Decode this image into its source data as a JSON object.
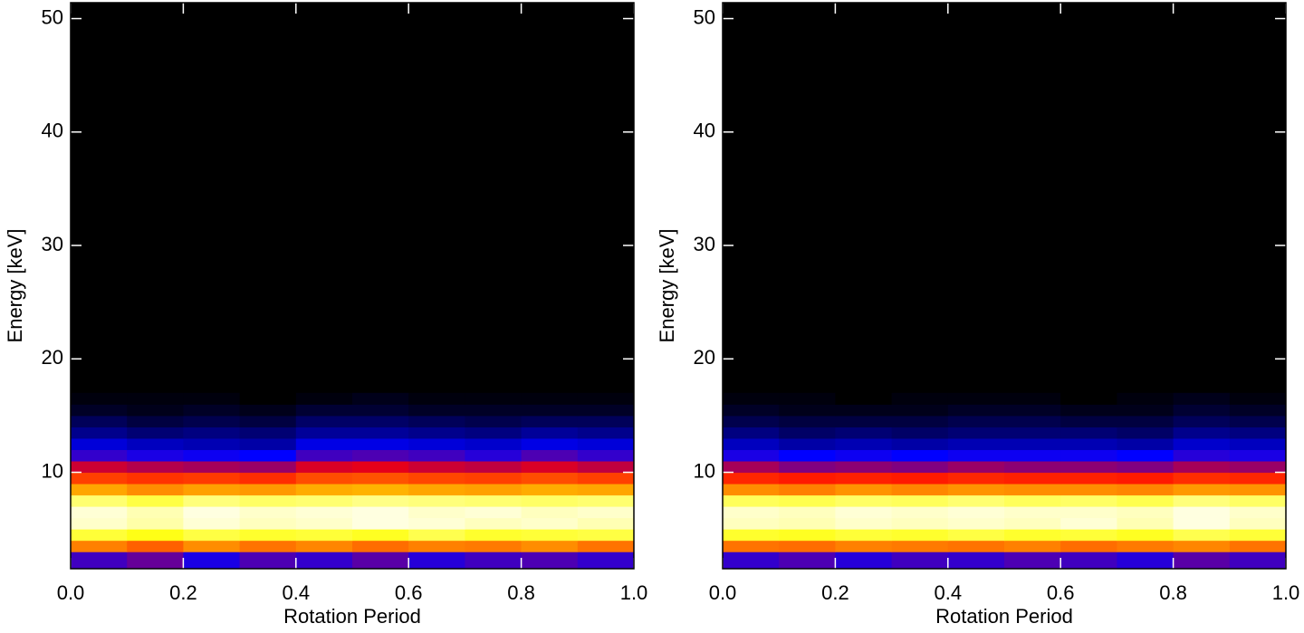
{
  "chart_data": [
    {
      "type": "heatmap",
      "xlabel": "Rotation Period",
      "ylabel": "Energy [keV]",
      "xlim": [
        0,
        1
      ],
      "ylim": [
        1.5,
        51.4
      ],
      "xticks": [
        {
          "value": 0,
          "label": "0.0"
        },
        {
          "value": 0.2,
          "label": "0.2"
        },
        {
          "value": 0.4,
          "label": "0.4"
        },
        {
          "value": 0.6,
          "label": "0.6"
        },
        {
          "value": 0.8,
          "label": "0.8"
        },
        {
          "value": 1,
          "label": "1.0"
        }
      ],
      "yticks": [
        10,
        20,
        30,
        40,
        50
      ],
      "colormap": [
        "#000000",
        "#0000ff",
        "#ff0000",
        "#ff8000",
        "#ffff00",
        "#ffffe0"
      ],
      "xbins": [
        0,
        0.1,
        0.2,
        0.3,
        0.4,
        0.5,
        0.6,
        0.7,
        0.8,
        0.9,
        1
      ],
      "ybins": [
        1.5,
        3,
        4,
        5,
        6,
        7,
        8,
        9,
        10,
        11,
        12,
        13,
        14,
        15,
        16,
        17
      ],
      "z": [
        [
          25,
          28,
          22,
          26,
          24,
          27,
          23,
          25,
          26,
          24
        ],
        [
          60,
          55,
          62,
          58,
          61,
          57,
          60,
          59,
          62,
          58
        ],
        [
          85,
          82,
          86,
          84,
          85,
          83,
          87,
          84,
          85,
          86
        ],
        [
          98,
          95,
          99,
          97,
          98,
          100,
          99,
          97,
          98,
          96
        ],
        [
          99,
          96,
          100,
          98,
          99,
          100,
          98,
          99,
          97,
          98
        ],
        [
          90,
          86,
          91,
          89,
          90,
          92,
          91,
          90,
          89,
          90
        ],
        [
          66,
          62,
          65,
          64,
          67,
          68,
          66,
          65,
          67,
          66
        ],
        [
          50,
          48,
          49,
          47,
          52,
          53,
          51,
          50,
          52,
          50
        ],
        [
          36,
          34,
          33,
          32,
          37,
          38,
          36,
          35,
          37,
          35
        ],
        [
          24,
          22,
          21,
          20,
          25,
          26,
          25,
          23,
          26,
          24
        ],
        [
          17,
          15,
          14,
          13,
          18,
          18,
          17,
          16,
          18,
          17
        ],
        [
          11,
          9,
          10,
          9,
          12,
          12,
          11,
          10,
          12,
          11
        ],
        [
          7,
          5,
          6,
          5,
          8,
          8,
          7,
          6,
          7,
          7
        ],
        [
          3,
          2,
          3,
          2,
          4,
          4,
          3,
          3,
          3,
          3
        ],
        [
          1,
          1,
          1,
          0,
          1,
          2,
          1,
          1,
          1,
          1
        ]
      ]
    },
    {
      "type": "heatmap",
      "xlabel": "Rotation Period",
      "ylabel": "Energy [keV]",
      "xlim": [
        0,
        1
      ],
      "ylim": [
        1.5,
        51.4
      ],
      "xticks": [
        {
          "value": 0,
          "label": "0.0"
        },
        {
          "value": 0.2,
          "label": "0.2"
        },
        {
          "value": 0.4,
          "label": "0.4"
        },
        {
          "value": 0.6,
          "label": "0.6"
        },
        {
          "value": 0.8,
          "label": "0.8"
        },
        {
          "value": 1,
          "label": "1.0"
        }
      ],
      "yticks": [
        10,
        20,
        30,
        40,
        50
      ],
      "colormap": [
        "#000000",
        "#0000ff",
        "#ff0000",
        "#ff8000",
        "#ffff00",
        "#ffffe0"
      ],
      "xbins": [
        0,
        0.1,
        0.2,
        0.3,
        0.4,
        0.5,
        0.6,
        0.7,
        0.8,
        0.9,
        1
      ],
      "ybins": [
        1.5,
        3,
        4,
        5,
        6,
        7,
        8,
        9,
        10,
        11,
        12,
        13,
        14,
        15,
        16,
        17
      ],
      "z": [
        [
          24,
          26,
          23,
          25,
          24,
          26,
          25,
          23,
          27,
          25
        ],
        [
          58,
          57,
          60,
          59,
          58,
          60,
          57,
          59,
          61,
          58
        ],
        [
          84,
          83,
          85,
          84,
          86,
          84,
          85,
          83,
          87,
          85
        ],
        [
          97,
          96,
          98,
          97,
          98,
          97,
          99,
          96,
          100,
          97
        ],
        [
          98,
          97,
          99,
          98,
          99,
          98,
          98,
          97,
          100,
          98
        ],
        [
          88,
          87,
          89,
          88,
          90,
          88,
          89,
          87,
          91,
          89
        ],
        [
          62,
          60,
          63,
          61,
          63,
          62,
          62,
          61,
          64,
          63
        ],
        [
          46,
          44,
          45,
          44,
          46,
          45,
          45,
          44,
          47,
          46
        ],
        [
          33,
          30,
          31,
          30,
          32,
          31,
          31,
          30,
          33,
          32
        ],
        [
          22,
          20,
          21,
          20,
          21,
          21,
          21,
          20,
          23,
          22
        ],
        [
          15,
          13,
          14,
          13,
          14,
          14,
          14,
          13,
          16,
          15
        ],
        [
          10,
          8,
          9,
          8,
          9,
          9,
          9,
          8,
          11,
          10
        ],
        [
          6,
          5,
          5,
          5,
          6,
          6,
          5,
          5,
          7,
          6
        ],
        [
          3,
          2,
          2,
          2,
          3,
          3,
          2,
          2,
          4,
          3
        ],
        [
          1,
          1,
          0,
          1,
          1,
          1,
          0,
          1,
          2,
          1
        ]
      ]
    }
  ]
}
